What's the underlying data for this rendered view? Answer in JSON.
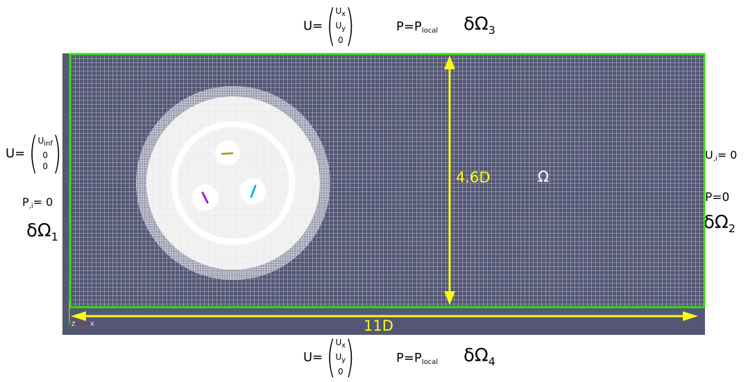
{
  "top": {
    "velocity": {
      "lhs": "U=",
      "c1": "U",
      "c1_sub": "x",
      "c2": "U",
      "c2_sub": "y",
      "c3": "0"
    },
    "pressure": {
      "lhs": "P=P",
      "sub": "local"
    },
    "boundary": {
      "symbol": "δΩ",
      "index": "3"
    }
  },
  "bottom": {
    "velocity": {
      "lhs": "U=",
      "c1": "U",
      "c1_sub": "x",
      "c2": "U",
      "c2_sub": "y",
      "c3": "0"
    },
    "pressure": {
      "lhs": "P=P",
      "sub": "local"
    },
    "boundary": {
      "symbol": "δΩ",
      "index": "4"
    }
  },
  "left": {
    "velocity": {
      "lhs": "U=",
      "c1": "U",
      "c1_sub": "inf",
      "c2": "0",
      "c3": "0"
    },
    "pressure_grad": {
      "text": "P",
      "sub": ",i",
      "rhs": "=  0"
    },
    "boundary": {
      "symbol": "δΩ",
      "index": "1"
    }
  },
  "right": {
    "velocity_grad": {
      "text": "U",
      "sub": ",i",
      "rhs": "=  0"
    },
    "pressure": "P=0",
    "boundary": {
      "symbol": "δΩ",
      "index": "2"
    }
  },
  "domain": {
    "height_label": "4.6D",
    "width_label": "11D",
    "region_label": "Ω",
    "axes": {
      "z": "Z",
      "x": "X"
    }
  },
  "colors": {
    "background": "#545774",
    "mesh_line": "#e8e8ee",
    "boundary_green": "#33dd11",
    "dimension_yellow": "#fbfb1a",
    "cylinder_zone": "#f2f2f2",
    "blade_purple": "#a81ccf",
    "blade_cyan": "#18b4cc",
    "blade_gold": "#b38f00"
  }
}
